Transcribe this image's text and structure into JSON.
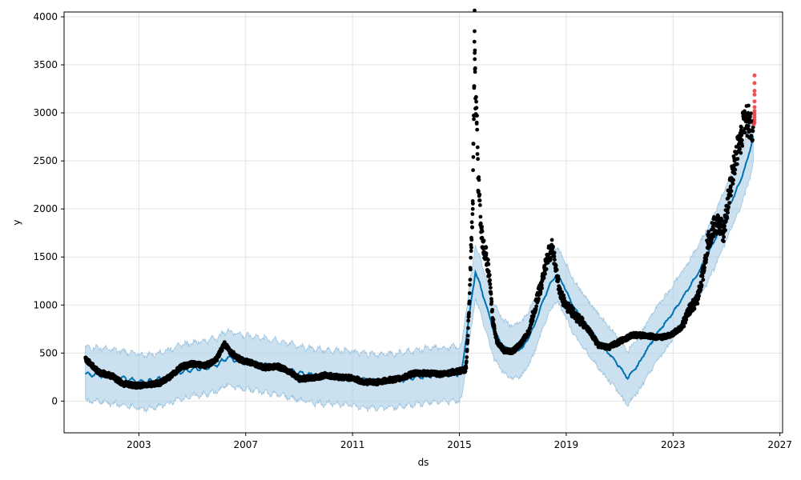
{
  "chart_data": {
    "type": "scatter",
    "title": "",
    "xlabel": "ds",
    "ylabel": "y",
    "xlim": [
      2000.2,
      2027.1
    ],
    "ylim": [
      -330,
      4050
    ],
    "grid": true,
    "x_ticks": [
      2003,
      2007,
      2011,
      2015,
      2019,
      2023,
      2027
    ],
    "y_ticks": [
      0,
      500,
      1000,
      1500,
      2000,
      2500,
      3000,
      3500,
      4000
    ],
    "colors": {
      "actual": "#000000",
      "test": "#e8363a",
      "forecast": "#0072b2",
      "interval": "#a8cde4"
    },
    "series": [
      {
        "role": "forecast",
        "points": [
          [
            2001.0,
            280
          ],
          [
            2001.5,
            275
          ],
          [
            2002.0,
            255
          ],
          [
            2002.5,
            235
          ],
          [
            2003.0,
            200
          ],
          [
            2003.5,
            205
          ],
          [
            2004.0,
            245
          ],
          [
            2004.5,
            300
          ],
          [
            2005.0,
            330
          ],
          [
            2005.5,
            345
          ],
          [
            2006.0,
            390
          ],
          [
            2006.3,
            455
          ],
          [
            2006.7,
            425
          ],
          [
            2007.0,
            400
          ],
          [
            2007.5,
            385
          ],
          [
            2008.0,
            355
          ],
          [
            2008.5,
            330
          ],
          [
            2009.0,
            295
          ],
          [
            2009.5,
            265
          ],
          [
            2010.0,
            255
          ],
          [
            2010.5,
            250
          ],
          [
            2011.0,
            235
          ],
          [
            2011.5,
            215
          ],
          [
            2012.0,
            205
          ],
          [
            2012.5,
            215
          ],
          [
            2013.0,
            230
          ],
          [
            2013.5,
            255
          ],
          [
            2014.0,
            270
          ],
          [
            2014.5,
            280
          ],
          [
            2015.0,
            285
          ],
          [
            2015.1,
            330
          ],
          [
            2015.25,
            650
          ],
          [
            2015.45,
            1050
          ],
          [
            2015.6,
            1345
          ],
          [
            2015.75,
            1230
          ],
          [
            2016.0,
            1000
          ],
          [
            2016.3,
            720
          ],
          [
            2016.7,
            555
          ],
          [
            2017.0,
            505
          ],
          [
            2017.4,
            560
          ],
          [
            2017.8,
            780
          ],
          [
            2018.1,
            1020
          ],
          [
            2018.4,
            1220
          ],
          [
            2018.65,
            1320
          ],
          [
            2018.9,
            1210
          ],
          [
            2019.2,
            1020
          ],
          [
            2019.6,
            850
          ],
          [
            2020.0,
            700
          ],
          [
            2020.4,
            560
          ],
          [
            2020.8,
            430
          ],
          [
            2021.3,
            240
          ],
          [
            2021.7,
            380
          ],
          [
            2022.0,
            530
          ],
          [
            2022.5,
            740
          ],
          [
            2023.0,
            920
          ],
          [
            2023.5,
            1140
          ],
          [
            2024.0,
            1360
          ],
          [
            2024.5,
            1640
          ],
          [
            2025.0,
            1960
          ],
          [
            2025.5,
            2280
          ],
          [
            2025.8,
            2520
          ],
          [
            2026.0,
            2760
          ]
        ]
      },
      {
        "role": "interval",
        "band_halfwidth": 280
      },
      {
        "role": "actual",
        "anchors": [
          [
            2001.0,
            440
          ],
          [
            2001.5,
            300
          ],
          [
            2002.0,
            260
          ],
          [
            2002.4,
            180
          ],
          [
            2002.9,
            160
          ],
          [
            2003.3,
            170
          ],
          [
            2003.8,
            190
          ],
          [
            2004.2,
            260
          ],
          [
            2004.6,
            360
          ],
          [
            2005.0,
            385
          ],
          [
            2005.5,
            370
          ],
          [
            2005.9,
            430
          ],
          [
            2006.2,
            600
          ],
          [
            2006.4,
            520
          ],
          [
            2006.8,
            430
          ],
          [
            2007.2,
            400
          ],
          [
            2007.7,
            350
          ],
          [
            2008.2,
            360
          ],
          [
            2008.7,
            300
          ],
          [
            2009.0,
            230
          ],
          [
            2009.5,
            240
          ],
          [
            2010.0,
            270
          ],
          [
            2010.5,
            250
          ],
          [
            2011.0,
            240
          ],
          [
            2011.4,
            200
          ],
          [
            2011.9,
            195
          ],
          [
            2012.4,
            220
          ],
          [
            2012.8,
            235
          ],
          [
            2013.3,
            290
          ],
          [
            2013.8,
            290
          ],
          [
            2014.3,
            280
          ],
          [
            2014.8,
            305
          ],
          [
            2015.2,
            320
          ]
        ],
        "spikes": [
          [
            2015.25,
            350
          ],
          [
            2015.3,
            600
          ],
          [
            2015.35,
            900
          ],
          [
            2015.45,
            1700
          ],
          [
            2015.5,
            2000
          ],
          [
            2015.52,
            2540
          ],
          [
            2015.55,
            3260
          ],
          [
            2015.57,
            3850
          ],
          [
            2015.58,
            3650
          ],
          [
            2015.6,
            3150
          ],
          [
            2015.65,
            2900
          ],
          [
            2015.7,
            2320
          ],
          [
            2015.75,
            2150
          ],
          [
            2015.8,
            1850
          ],
          [
            2015.85,
            1700
          ],
          [
            2015.9,
            1600
          ],
          [
            2016.0,
            1520
          ],
          [
            2016.1,
            1350
          ],
          [
            2016.25,
            850
          ],
          [
            2016.4,
            620
          ],
          [
            2016.7,
            520
          ],
          [
            2017.0,
            520
          ],
          [
            2017.3,
            600
          ],
          [
            2017.6,
            720
          ],
          [
            2017.9,
            1050
          ],
          [
            2018.1,
            1250
          ],
          [
            2018.3,
            1500
          ],
          [
            2018.5,
            1600
          ],
          [
            2018.65,
            1300
          ],
          [
            2018.8,
            1100
          ],
          [
            2019.0,
            1000
          ],
          [
            2019.3,
            900
          ],
          [
            2019.6,
            820
          ],
          [
            2019.9,
            720
          ],
          [
            2020.2,
            580
          ],
          [
            2020.6,
            560
          ],
          [
            2021.0,
            620
          ],
          [
            2021.5,
            690
          ],
          [
            2022.0,
            680
          ],
          [
            2022.5,
            660
          ],
          [
            2022.9,
            690
          ],
          [
            2023.3,
            760
          ],
          [
            2023.6,
            940
          ],
          [
            2023.9,
            1050
          ],
          [
            2024.1,
            1300
          ],
          [
            2024.3,
            1650
          ],
          [
            2024.5,
            1800
          ],
          [
            2024.7,
            1850
          ],
          [
            2024.9,
            1760
          ],
          [
            2025.1,
            2150
          ],
          [
            2025.3,
            2500
          ],
          [
            2025.5,
            2700
          ],
          [
            2025.7,
            2950
          ],
          [
            2025.85,
            2900
          ],
          [
            2026.0,
            2850
          ]
        ]
      },
      {
        "role": "test",
        "points": [
          [
            2026.05,
            3390
          ],
          [
            2026.05,
            3310
          ],
          [
            2026.05,
            3230
          ],
          [
            2026.05,
            3190
          ],
          [
            2026.05,
            3120
          ],
          [
            2026.05,
            3060
          ],
          [
            2026.05,
            3020
          ],
          [
            2026.05,
            2990
          ],
          [
            2026.05,
            2960
          ],
          [
            2026.05,
            2930
          ],
          [
            2026.05,
            2900
          ],
          [
            2026.02,
            2880
          ]
        ]
      }
    ]
  }
}
